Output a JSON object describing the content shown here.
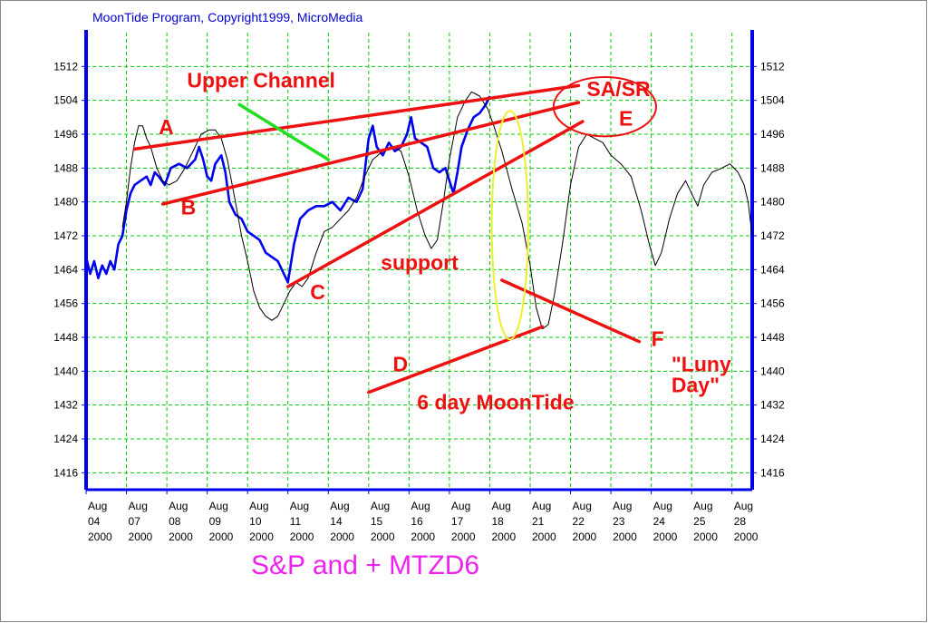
{
  "header": "MoonTide Program, Copyright1999, MicroMedia",
  "caption": "S&P and + MTZD6",
  "colors": {
    "price": "#0000ee",
    "moontide": "#000000",
    "grid": "#00cc00",
    "axis": "#0000ee",
    "annotation": "#ee1111",
    "upper_channel_pointer": "#22dd22",
    "luny_day_ellipse": "#eeee33",
    "header": "#0000cc",
    "caption": "#ee22ee"
  },
  "chart_data": {
    "type": "line",
    "y_range": [
      1412,
      1520
    ],
    "y_ticks": [
      1512,
      1504,
      1496,
      1488,
      1480,
      1472,
      1464,
      1456,
      1448,
      1440,
      1432,
      1424,
      1416
    ],
    "x_range": [
      0,
      16.5
    ],
    "x_ticks": [
      {
        "month": "Aug",
        "day": "04",
        "year": "2000"
      },
      {
        "month": "Aug",
        "day": "07",
        "year": "2000"
      },
      {
        "month": "Aug",
        "day": "08",
        "year": "2000"
      },
      {
        "month": "Aug",
        "day": "09",
        "year": "2000"
      },
      {
        "month": "Aug",
        "day": "10",
        "year": "2000"
      },
      {
        "month": "Aug",
        "day": "11",
        "year": "2000"
      },
      {
        "month": "Aug",
        "day": "14",
        "year": "2000"
      },
      {
        "month": "Aug",
        "day": "15",
        "year": "2000"
      },
      {
        "month": "Aug",
        "day": "16",
        "year": "2000"
      },
      {
        "month": "Aug",
        "day": "17",
        "year": "2000"
      },
      {
        "month": "Aug",
        "day": "18",
        "year": "2000"
      },
      {
        "month": "Aug",
        "day": "21",
        "year": "2000"
      },
      {
        "month": "Aug",
        "day": "22",
        "year": "2000"
      },
      {
        "month": "Aug",
        "day": "23",
        "year": "2000"
      },
      {
        "month": "Aug",
        "day": "24",
        "year": "2000"
      },
      {
        "month": "Aug",
        "day": "25",
        "year": "2000"
      },
      {
        "month": "Aug",
        "day": "28",
        "year": "2000"
      }
    ],
    "grid": true,
    "series": [
      {
        "style": "thick-blue",
        "points": [
          [
            0,
            1467
          ],
          [
            0.1,
            1463
          ],
          [
            0.2,
            1466
          ],
          [
            0.3,
            1462
          ],
          [
            0.4,
            1465
          ],
          [
            0.5,
            1463
          ],
          [
            0.6,
            1466
          ],
          [
            0.7,
            1464
          ],
          [
            0.8,
            1470
          ],
          [
            0.9,
            1472
          ],
          [
            1.0,
            1478
          ],
          [
            1.1,
            1482
          ],
          [
            1.2,
            1484
          ],
          [
            1.35,
            1485
          ],
          [
            1.5,
            1486
          ],
          [
            1.6,
            1484
          ],
          [
            1.7,
            1487
          ],
          [
            1.8,
            1486
          ],
          [
            1.95,
            1484
          ],
          [
            2.1,
            1488
          ],
          [
            2.3,
            1489
          ],
          [
            2.5,
            1488
          ],
          [
            2.7,
            1490
          ],
          [
            2.8,
            1493
          ],
          [
            2.9,
            1490
          ],
          [
            3.0,
            1486
          ],
          [
            3.1,
            1485
          ],
          [
            3.2,
            1489
          ],
          [
            3.35,
            1491
          ],
          [
            3.45,
            1487
          ],
          [
            3.55,
            1480
          ],
          [
            3.7,
            1477
          ],
          [
            3.85,
            1476
          ],
          [
            4.0,
            1473
          ],
          [
            4.15,
            1472
          ],
          [
            4.3,
            1471
          ],
          [
            4.45,
            1468
          ],
          [
            4.6,
            1467
          ],
          [
            4.75,
            1466
          ],
          [
            4.85,
            1464
          ],
          [
            5.0,
            1461
          ],
          [
            5.15,
            1470
          ],
          [
            5.3,
            1476
          ],
          [
            5.5,
            1478
          ],
          [
            5.7,
            1479
          ],
          [
            5.9,
            1479
          ],
          [
            6.1,
            1480
          ],
          [
            6.3,
            1478
          ],
          [
            6.5,
            1481
          ],
          [
            6.7,
            1480
          ],
          [
            6.85,
            1483
          ],
          [
            7.0,
            1495
          ],
          [
            7.1,
            1498
          ],
          [
            7.2,
            1493
          ],
          [
            7.35,
            1491
          ],
          [
            7.5,
            1494
          ],
          [
            7.65,
            1492
          ],
          [
            7.8,
            1493
          ],
          [
            7.95,
            1496
          ],
          [
            8.05,
            1500
          ],
          [
            8.15,
            1495
          ],
          [
            8.3,
            1494
          ],
          [
            8.45,
            1493
          ],
          [
            8.6,
            1488
          ],
          [
            8.75,
            1487
          ],
          [
            8.9,
            1488
          ],
          [
            9.0,
            1485
          ],
          [
            9.1,
            1482
          ],
          [
            9.2,
            1487
          ],
          [
            9.3,
            1493
          ],
          [
            9.45,
            1497
          ],
          [
            9.6,
            1500
          ],
          [
            9.75,
            1501
          ],
          [
            9.9,
            1503
          ],
          [
            10.0,
            1505
          ]
        ]
      },
      {
        "style": "thin-black",
        "points": [
          [
            0.9,
            1474
          ],
          [
            1.0,
            1480
          ],
          [
            1.1,
            1488
          ],
          [
            1.2,
            1494
          ],
          [
            1.3,
            1498
          ],
          [
            1.4,
            1498
          ],
          [
            1.5,
            1495
          ],
          [
            1.6,
            1493
          ],
          [
            1.75,
            1488
          ],
          [
            1.9,
            1485
          ],
          [
            2.05,
            1484
          ],
          [
            2.25,
            1485
          ],
          [
            2.45,
            1488
          ],
          [
            2.65,
            1492
          ],
          [
            2.85,
            1496
          ],
          [
            3.05,
            1497
          ],
          [
            3.2,
            1497
          ],
          [
            3.35,
            1495
          ],
          [
            3.5,
            1490
          ],
          [
            3.7,
            1480
          ],
          [
            3.85,
            1472
          ],
          [
            4.0,
            1466
          ],
          [
            4.15,
            1459
          ],
          [
            4.3,
            1455
          ],
          [
            4.45,
            1453
          ],
          [
            4.6,
            1452
          ],
          [
            4.75,
            1453
          ],
          [
            4.9,
            1456
          ],
          [
            5.05,
            1459
          ],
          [
            5.2,
            1461
          ],
          [
            5.35,
            1460
          ],
          [
            5.5,
            1462
          ],
          [
            5.7,
            1468
          ],
          [
            5.9,
            1473
          ],
          [
            6.1,
            1474
          ],
          [
            6.3,
            1476
          ],
          [
            6.5,
            1478
          ],
          [
            6.7,
            1481
          ],
          [
            6.9,
            1486
          ],
          [
            7.1,
            1490
          ],
          [
            7.35,
            1492
          ],
          [
            7.6,
            1493
          ],
          [
            7.8,
            1492
          ],
          [
            8.0,
            1486
          ],
          [
            8.2,
            1478
          ],
          [
            8.4,
            1472
          ],
          [
            8.55,
            1469
          ],
          [
            8.7,
            1471
          ],
          [
            8.85,
            1480
          ],
          [
            9.0,
            1490
          ],
          [
            9.2,
            1500
          ],
          [
            9.4,
            1504
          ],
          [
            9.55,
            1506
          ],
          [
            9.75,
            1505
          ],
          [
            9.95,
            1502
          ],
          [
            10.1,
            1498
          ],
          [
            10.3,
            1492
          ],
          [
            10.55,
            1483
          ],
          [
            10.8,
            1475
          ],
          [
            11.0,
            1465
          ],
          [
            11.15,
            1455
          ],
          [
            11.3,
            1450
          ],
          [
            11.45,
            1451
          ],
          [
            11.6,
            1458
          ],
          [
            11.8,
            1470
          ],
          [
            12.0,
            1484
          ],
          [
            12.2,
            1493
          ],
          [
            12.4,
            1496
          ],
          [
            12.6,
            1495
          ],
          [
            12.8,
            1494
          ],
          [
            13.0,
            1491
          ],
          [
            13.25,
            1489
          ],
          [
            13.5,
            1486
          ],
          [
            13.75,
            1478
          ],
          [
            13.95,
            1470
          ],
          [
            14.1,
            1465
          ],
          [
            14.25,
            1468
          ],
          [
            14.45,
            1476
          ],
          [
            14.65,
            1482
          ],
          [
            14.85,
            1485
          ],
          [
            15.0,
            1482
          ],
          [
            15.15,
            1479
          ],
          [
            15.3,
            1484
          ],
          [
            15.5,
            1487
          ],
          [
            15.75,
            1488
          ],
          [
            15.95,
            1489
          ],
          [
            16.15,
            1487
          ],
          [
            16.3,
            1484
          ],
          [
            16.4,
            1480
          ],
          [
            16.5,
            1472
          ]
        ]
      }
    ],
    "annotations": {
      "labels": [
        {
          "text": "Upper Channel",
          "x": 2.5,
          "y": 1507
        },
        {
          "text": "A",
          "x": 1.8,
          "y": 1496
        },
        {
          "text": "B",
          "x": 2.35,
          "y": 1477
        },
        {
          "text": "C",
          "x": 5.55,
          "y": 1457
        },
        {
          "text": "support",
          "x": 7.3,
          "y": 1464
        },
        {
          "text": "SA/SR",
          "x": 12.4,
          "y": 1505
        },
        {
          "text": "E",
          "x": 13.2,
          "y": 1498
        },
        {
          "text": "D",
          "x": 7.6,
          "y": 1440
        },
        {
          "text": "6 day MoonTide",
          "x": 8.2,
          "y": 1431
        },
        {
          "text": "F",
          "x": 14.0,
          "y": 1446
        },
        {
          "text": "\"Luny",
          "x": 14.5,
          "y": 1440
        },
        {
          "text": "Day\"",
          "x": 14.5,
          "y": 1435
        }
      ],
      "lines": [
        {
          "role": "channel-A",
          "from": [
            1.2,
            1492.5
          ],
          "to": [
            12.2,
            1507.5
          ]
        },
        {
          "role": "channel-B",
          "from": [
            1.9,
            1479.5
          ],
          "to": [
            12.2,
            1503.5
          ]
        },
        {
          "role": "support-C",
          "from": [
            5.0,
            1460
          ],
          "to": [
            12.3,
            1499
          ]
        },
        {
          "role": "upper-channel-pointer",
          "from": [
            3.8,
            1503
          ],
          "to": [
            6.0,
            1490
          ]
        },
        {
          "role": "pointer-D",
          "from": [
            7.0,
            1435
          ],
          "to": [
            11.3,
            1450.5
          ]
        },
        {
          "role": "pointer-F",
          "from": [
            10.3,
            1461.5
          ],
          "to": [
            13.7,
            1447
          ]
        }
      ],
      "ellipses": [
        {
          "role": "luny-day",
          "cx": 10.5,
          "cy": 1474.5,
          "rx": 0.45,
          "ry": 27
        },
        {
          "role": "sa-sr",
          "cx": 12.85,
          "cy": 1502.5,
          "rx": 1.27,
          "ry": 7
        }
      ]
    }
  }
}
